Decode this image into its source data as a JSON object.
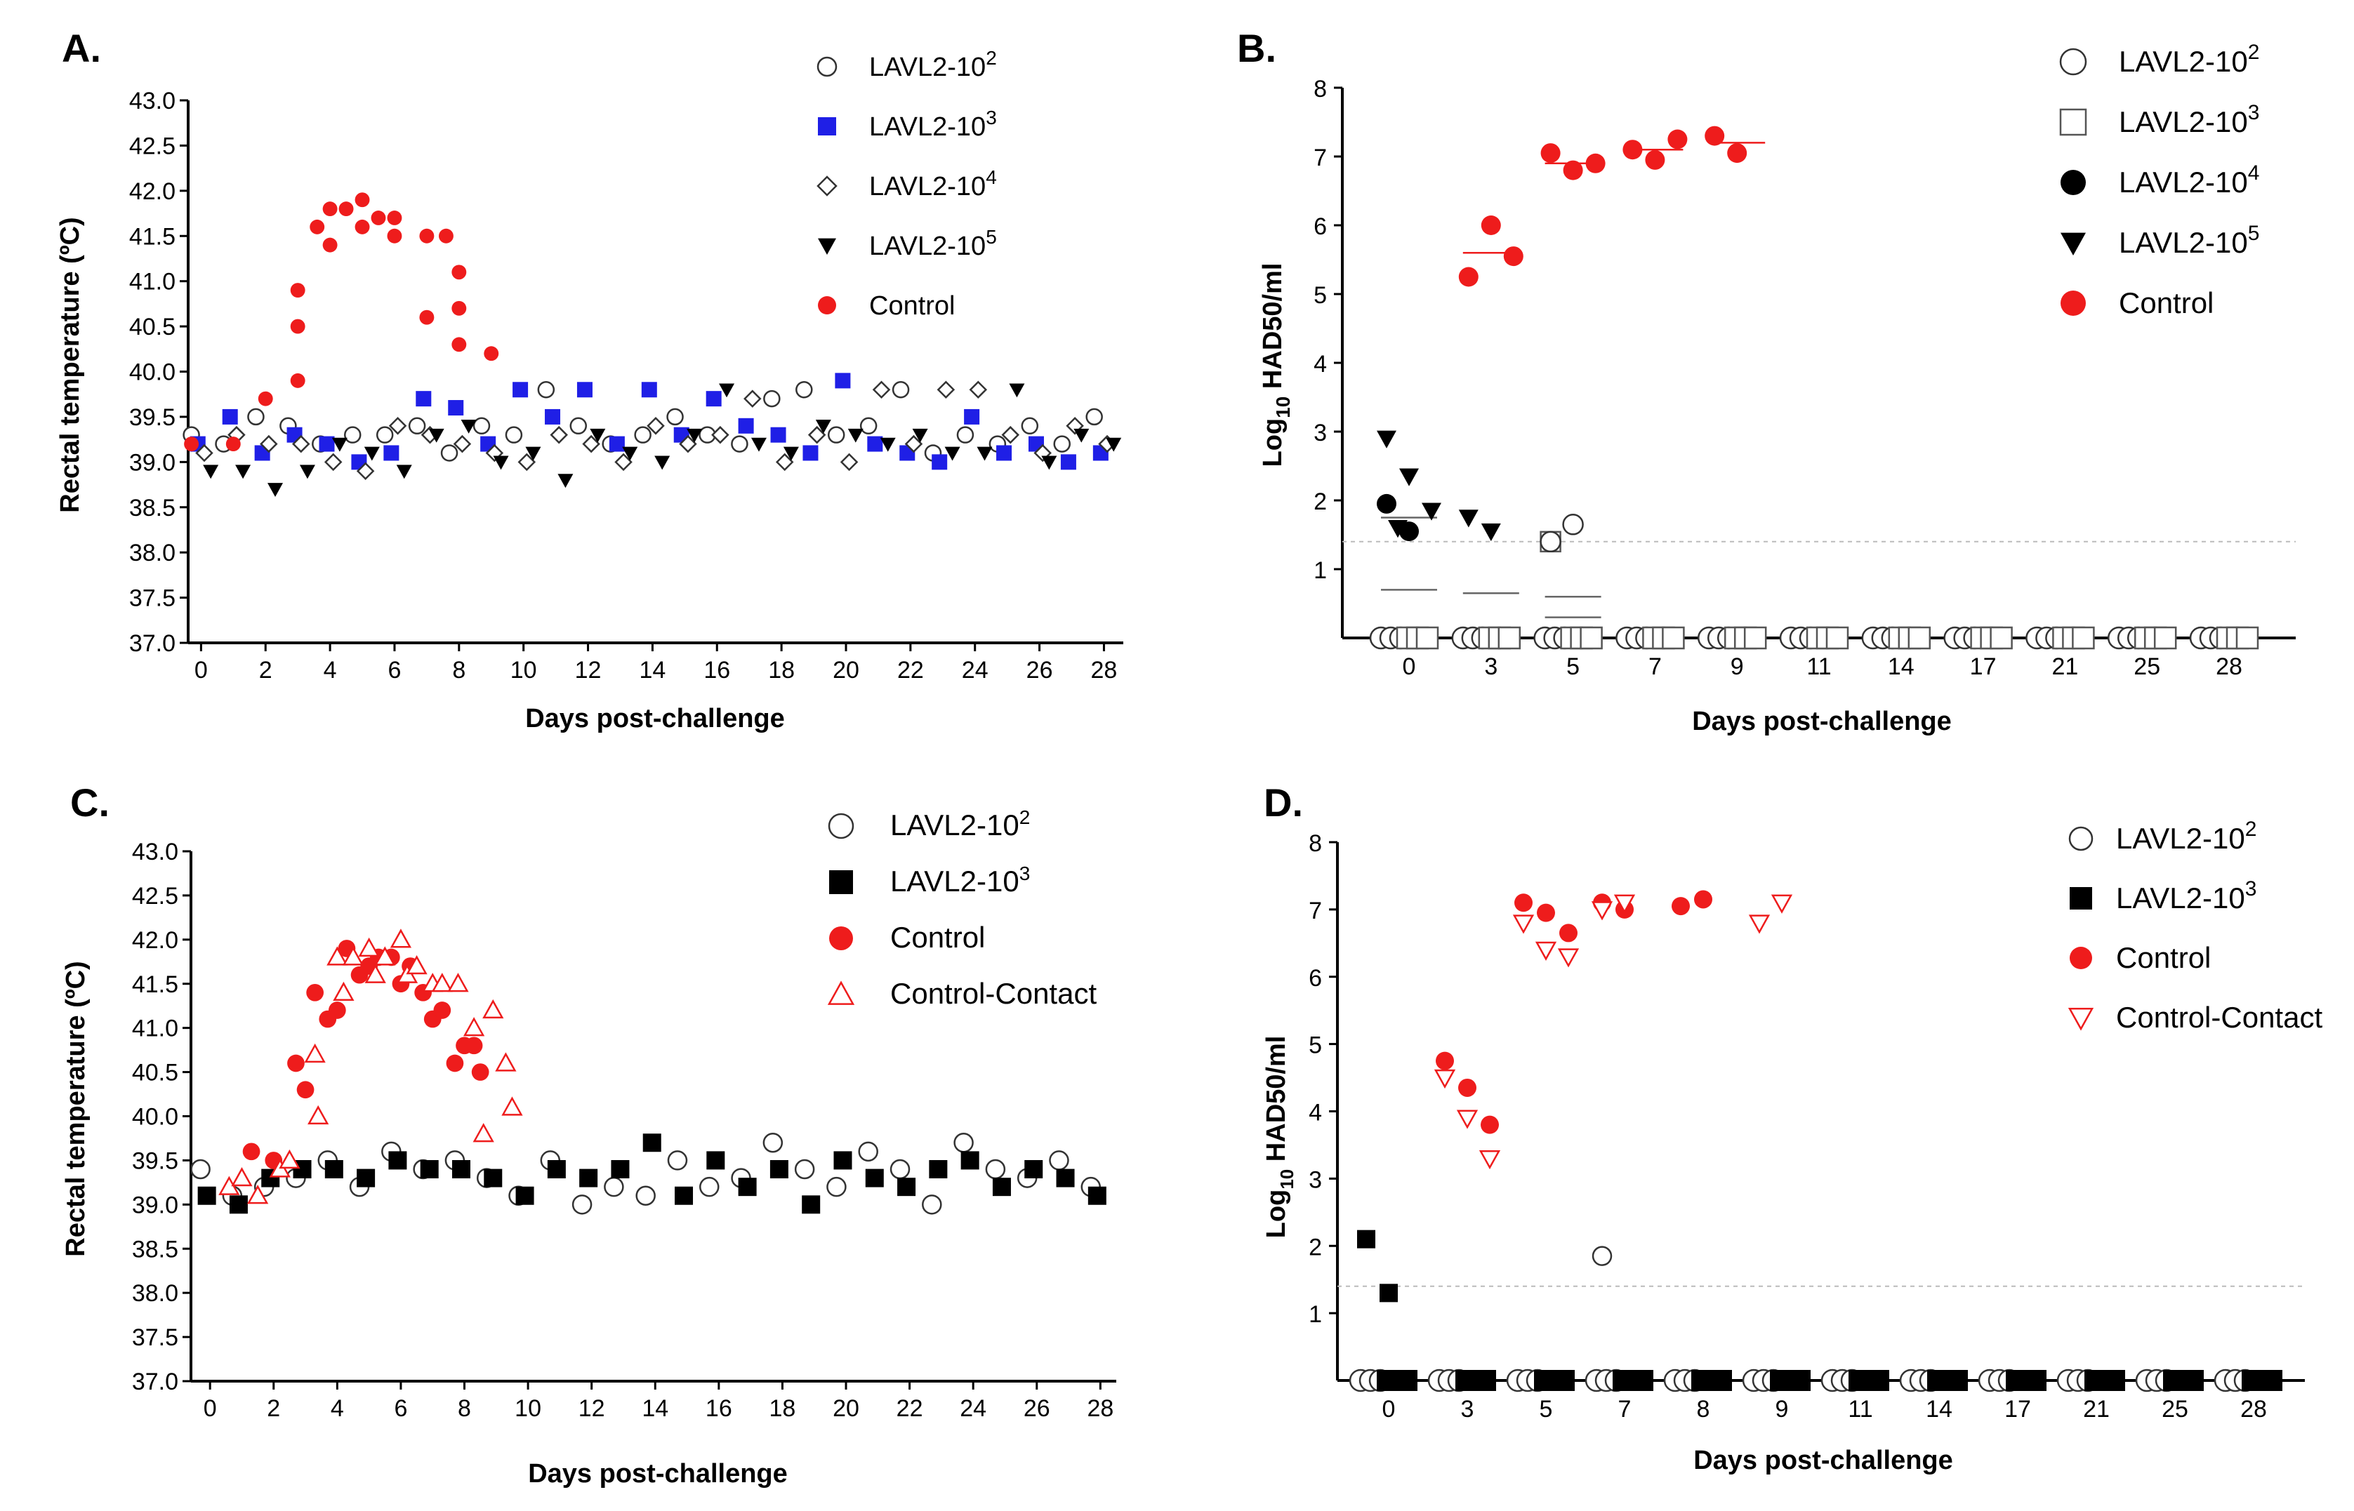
{
  "colors": {
    "control": "#ee1c1c",
    "blue": "#1f1fe6",
    "black": "#000000",
    "grey": "#999999"
  },
  "chart_data": [
    {
      "panel": "A.",
      "type": "scatter",
      "xlabel": "Days post-challenge",
      "ylabel": "Rectal temperature (ºC)",
      "xlim": [
        -0.4,
        28.6
      ],
      "ylim": [
        37.0,
        43.0
      ],
      "xticks": [
        "0",
        "2",
        "4",
        "6",
        "8",
        "10",
        "12",
        "14",
        "16",
        "18",
        "20",
        "22",
        "24",
        "26",
        "28"
      ],
      "yticks": [
        "37.0",
        "37.5",
        "38.0",
        "38.5",
        "39.0",
        "39.5",
        "40.0",
        "40.5",
        "41.0",
        "41.5",
        "42.0",
        "42.5",
        "43.0"
      ],
      "legend": [
        {
          "name": "LAVL2-10",
          "sup": "2",
          "marker": "circle-open"
        },
        {
          "name": "LAVL2-10",
          "sup": "3",
          "marker": "square-blue"
        },
        {
          "name": "LAVL2-10",
          "sup": "4",
          "marker": "diamond-open"
        },
        {
          "name": "LAVL2-10",
          "sup": "5",
          "marker": "triangle-down"
        },
        {
          "name": "Control",
          "sup": "",
          "marker": "dot-red"
        }
      ],
      "series": [
        {
          "name": "LAVL2-10²",
          "marker": "circle-open",
          "x": [
            0,
            1,
            2,
            3,
            4,
            5,
            6,
            7,
            8,
            9,
            10,
            11,
            12,
            13,
            14,
            15,
            16,
            17,
            18,
            19,
            20,
            21,
            22,
            23,
            24,
            25,
            26,
            27,
            28
          ],
          "y": [
            39.3,
            39.2,
            39.5,
            39.4,
            39.2,
            39.3,
            39.3,
            39.4,
            39.1,
            39.4,
            39.3,
            39.8,
            39.4,
            39.2,
            39.3,
            39.5,
            39.3,
            39.2,
            39.7,
            39.8,
            39.3,
            39.4,
            39.8,
            39.1,
            39.3,
            39.2,
            39.4,
            39.2,
            39.5
          ]
        },
        {
          "name": "LAVL2-10³",
          "marker": "square-blue",
          "x": [
            0,
            1,
            2,
            3,
            4,
            5,
            6,
            7,
            8,
            9,
            10,
            11,
            12,
            13,
            14,
            15,
            16,
            17,
            18,
            19,
            20,
            21,
            22,
            23,
            24,
            25,
            26,
            27,
            28
          ],
          "y": [
            39.2,
            39.5,
            39.1,
            39.3,
            39.2,
            39.0,
            39.1,
            39.7,
            39.6,
            39.2,
            39.8,
            39.5,
            39.8,
            39.2,
            39.8,
            39.3,
            39.7,
            39.4,
            39.3,
            39.1,
            39.9,
            39.2,
            39.1,
            39.0,
            39.5,
            39.1,
            39.2,
            39.0,
            39.1
          ]
        },
        {
          "name": "LAVL2-10⁴",
          "marker": "diamond-open",
          "x": [
            0,
            1,
            2,
            3,
            4,
            5,
            6,
            7,
            8,
            9,
            10,
            11,
            12,
            13,
            14,
            15,
            16,
            17,
            18,
            19,
            20,
            21,
            22,
            23,
            24,
            25,
            26,
            27,
            28
          ],
          "y": [
            39.1,
            39.3,
            39.2,
            39.2,
            39.0,
            38.9,
            39.4,
            39.3,
            39.2,
            39.1,
            39.0,
            39.3,
            39.2,
            39.0,
            39.4,
            39.2,
            39.3,
            39.7,
            39.0,
            39.3,
            39.0,
            39.8,
            39.2,
            39.8,
            39.8,
            39.3,
            39.1,
            39.4,
            39.2
          ]
        },
        {
          "name": "LAVL2-10⁵",
          "marker": "triangle-down",
          "x": [
            0,
            1,
            2,
            3,
            4,
            5,
            6,
            7,
            8,
            9,
            10,
            11,
            12,
            13,
            14,
            15,
            16,
            17,
            18,
            19,
            20,
            21,
            22,
            23,
            24,
            25,
            26,
            27,
            28
          ],
          "y": [
            38.9,
            38.9,
            38.7,
            38.9,
            39.2,
            39.1,
            38.9,
            39.3,
            39.4,
            39.0,
            39.1,
            38.8,
            39.3,
            39.1,
            39.0,
            39.3,
            39.8,
            39.2,
            39.1,
            39.4,
            39.3,
            39.2,
            39.3,
            39.1,
            39.1,
            39.8,
            39.0,
            39.3,
            39.2
          ]
        },
        {
          "name": "Control",
          "marker": "dot-red",
          "x": [
            -0.3,
            1,
            2,
            3,
            3,
            3,
            3.6,
            4,
            4,
            4.5,
            5,
            5,
            5.5,
            6,
            6,
            7,
            7,
            7.6,
            8,
            8,
            8,
            9
          ],
          "y": [
            39.2,
            39.2,
            39.7,
            40.9,
            40.5,
            39.9,
            41.6,
            41.8,
            41.4,
            41.8,
            41.9,
            41.6,
            41.7,
            41.7,
            41.5,
            41.5,
            40.6,
            41.5,
            41.1,
            40.3,
            40.7,
            40.2
          ]
        }
      ]
    },
    {
      "panel": "B.",
      "type": "scatter",
      "xlabel": "Days post-challenge",
      "ylabel": "Log10 HAD50/ml",
      "ylabel_base": "Log",
      "ylabel_sub": "10",
      "ylabel_rest": " HAD50/ml",
      "ylim": [
        0,
        8
      ],
      "categories": [
        "0",
        "3",
        "5",
        "7",
        "9",
        "11",
        "14",
        "17",
        "21",
        "25",
        "28"
      ],
      "yticks": [
        "1",
        "2",
        "3",
        "4",
        "5",
        "6",
        "7",
        "8"
      ],
      "detection_limit": 1.4,
      "legend": [
        {
          "name": "LAVL2-10",
          "sup": "2",
          "marker": "circle-open"
        },
        {
          "name": "LAVL2-10",
          "sup": "3",
          "marker": "square-open"
        },
        {
          "name": "LAVL2-10",
          "sup": "4",
          "marker": "dot-black"
        },
        {
          "name": "LAVL2-10",
          "sup": "5",
          "marker": "triangle-down"
        },
        {
          "name": "Control",
          "sup": "",
          "marker": "dot-red"
        }
      ],
      "series": [
        {
          "name": "Control",
          "marker": "dot-red",
          "x": [
            3,
            3,
            3,
            5,
            5,
            5,
            7,
            7,
            7,
            9,
            9
          ],
          "y": [
            5.25,
            6.0,
            5.55,
            7.05,
            6.8,
            6.9,
            7.1,
            6.95,
            7.25,
            7.3,
            7.05
          ]
        },
        {
          "name": "LAVL2-10⁵",
          "marker": "triangle-down",
          "x": [
            0,
            0,
            0,
            0,
            3,
            3
          ],
          "y": [
            2.9,
            2.35,
            1.85,
            1.6,
            1.75,
            1.55
          ]
        },
        {
          "name": "LAVL2-10⁴",
          "marker": "dot-black",
          "x": [
            0,
            0
          ],
          "y": [
            1.95,
            1.55
          ]
        },
        {
          "name": "LAVL2-10³",
          "marker": "square-open",
          "x": [
            5
          ],
          "y": [
            1.4
          ]
        },
        {
          "name": "LAVL2-10²",
          "marker": "circle-open",
          "x": [
            5,
            5
          ],
          "y": [
            1.4,
            1.65
          ]
        }
      ],
      "means": [
        {
          "x": 0,
          "y": 1.75
        },
        {
          "x": 3,
          "y": 5.6
        },
        {
          "x": 5,
          "y": 6.9
        },
        {
          "x": 7,
          "y": 7.1
        },
        {
          "x": 9,
          "y": 7.2
        },
        {
          "x": 0,
          "y": 0.7
        },
        {
          "x": 3,
          "y": 0.65
        },
        {
          "x": 5,
          "y": 0.6
        },
        {
          "x": 5,
          "y": 0.3
        }
      ]
    },
    {
      "panel": "C.",
      "type": "scatter",
      "xlabel": "Days post-challenge",
      "ylabel": "Rectal temperature (ºC)",
      "xlim": [
        -0.6,
        28.5
      ],
      "ylim": [
        37.0,
        43.0
      ],
      "xticks": [
        "0",
        "2",
        "4",
        "6",
        "8",
        "10",
        "12",
        "14",
        "16",
        "18",
        "20",
        "22",
        "24",
        "26",
        "28"
      ],
      "yticks": [
        "37.0",
        "37.5",
        "38.0",
        "38.5",
        "39.0",
        "39.5",
        "40.0",
        "40.5",
        "41.0",
        "41.5",
        "42.0",
        "42.5",
        "43.0"
      ],
      "legend": [
        {
          "name": "LAVL2-10",
          "sup": "2",
          "marker": "circle-open"
        },
        {
          "name": "LAVL2-10",
          "sup": "3",
          "marker": "square-black"
        },
        {
          "name": "Control",
          "sup": "",
          "marker": "dot-red"
        },
        {
          "name": "Control-Contact",
          "sup": "",
          "marker": "triangle-open-red"
        }
      ],
      "series": [
        {
          "name": "LAVL2-10²",
          "marker": "circle-open",
          "x": [
            0,
            1,
            2,
            3,
            4,
            5,
            6,
            7,
            8,
            9,
            10,
            11,
            12,
            13,
            14,
            15,
            16,
            17,
            18,
            19,
            20,
            21,
            22,
            23,
            24,
            25,
            26,
            27,
            28
          ],
          "y": [
            39.4,
            39.1,
            39.2,
            39.3,
            39.5,
            39.2,
            39.6,
            39.4,
            39.5,
            39.3,
            39.1,
            39.5,
            39.0,
            39.2,
            39.1,
            39.5,
            39.2,
            39.3,
            39.7,
            39.4,
            39.2,
            39.6,
            39.4,
            39.0,
            39.7,
            39.4,
            39.3,
            39.5,
            39.2
          ]
        },
        {
          "name": "LAVL2-10³",
          "marker": "square-black",
          "x": [
            0,
            1,
            2,
            3,
            4,
            5,
            6,
            7,
            8,
            9,
            10,
            11,
            12,
            13,
            14,
            15,
            16,
            17,
            18,
            19,
            20,
            21,
            22,
            23,
            24,
            25,
            26,
            27,
            28
          ],
          "y": [
            39.1,
            39.0,
            39.3,
            39.4,
            39.4,
            39.3,
            39.5,
            39.4,
            39.4,
            39.3,
            39.1,
            39.4,
            39.3,
            39.4,
            39.7,
            39.1,
            39.5,
            39.2,
            39.4,
            39.0,
            39.5,
            39.3,
            39.2,
            39.4,
            39.5,
            39.2,
            39.4,
            39.3,
            39.1
          ]
        },
        {
          "name": "Control",
          "marker": "dot-red",
          "x": [
            1.3,
            2,
            2.7,
            3,
            3.3,
            3.7,
            4,
            4.3,
            4.7,
            5,
            5.3,
            5.7,
            6,
            6.3,
            6.7,
            7,
            7.3,
            7.7,
            8,
            8.3,
            8.5
          ],
          "y": [
            39.6,
            39.5,
            40.6,
            40.3,
            41.4,
            41.1,
            41.2,
            41.9,
            41.6,
            41.7,
            41.8,
            41.8,
            41.5,
            41.7,
            41.4,
            41.1,
            41.2,
            40.6,
            40.8,
            40.8,
            40.5
          ]
        },
        {
          "name": "Control-Contact",
          "marker": "triangle-open-red",
          "x": [
            0.6,
            1,
            1.5,
            2.2,
            2.5,
            3.3,
            3.4,
            4,
            4.2,
            4.5,
            5,
            5.2,
            5.5,
            6,
            6.2,
            6.5,
            7,
            7.3,
            7.8,
            8.3,
            8.6,
            8.9,
            9.3,
            9.5
          ],
          "y": [
            39.2,
            39.3,
            39.1,
            39.4,
            39.5,
            40.7,
            40.0,
            41.8,
            41.4,
            41.8,
            41.9,
            41.6,
            41.8,
            42.0,
            41.6,
            41.7,
            41.5,
            41.5,
            41.5,
            41.0,
            39.8,
            41.2,
            40.6,
            40.1
          ]
        }
      ]
    },
    {
      "panel": "D.",
      "type": "scatter",
      "xlabel": "Days post-challenge",
      "ylabel": "Log10 HAD50/ml",
      "ylabel_base": "Log",
      "ylabel_sub": "10",
      "ylabel_rest": " HAD50/ml",
      "ylim": [
        0,
        8
      ],
      "categories": [
        "0",
        "3",
        "5",
        "7",
        "8",
        "9",
        "11",
        "14",
        "17",
        "21",
        "25",
        "28"
      ],
      "yticks": [
        "1",
        "2",
        "3",
        "4",
        "5",
        "6",
        "7",
        "8"
      ],
      "detection_limit": 1.4,
      "legend": [
        {
          "name": "LAVL2-10",
          "sup": "2",
          "marker": "circle-open"
        },
        {
          "name": "LAVL2-10",
          "sup": "3",
          "marker": "square-black"
        },
        {
          "name": "Control",
          "sup": "",
          "marker": "dot-red"
        },
        {
          "name": "Control-Contact",
          "sup": "",
          "marker": "triangle-down-open-red"
        }
      ],
      "series": [
        {
          "name": "LAVL2-10³",
          "marker": "square-black",
          "x": [
            0,
            0
          ],
          "y": [
            2.1,
            1.3
          ]
        },
        {
          "name": "LAVL2-10²",
          "marker": "circle-open",
          "x": [
            7
          ],
          "y": [
            1.85
          ]
        },
        {
          "name": "Control",
          "marker": "dot-red",
          "x": [
            3,
            3,
            3,
            5,
            5,
            5,
            7,
            7,
            8,
            8
          ],
          "y": [
            4.75,
            4.35,
            3.8,
            7.1,
            6.95,
            6.65,
            7.1,
            7.0,
            7.05,
            7.15
          ]
        },
        {
          "name": "Control-Contact",
          "marker": "triangle-down-open-red",
          "x": [
            3,
            3,
            3,
            5,
            5,
            5,
            7,
            7,
            9,
            9
          ],
          "y": [
            4.5,
            3.9,
            3.3,
            6.8,
            6.4,
            6.3,
            7.0,
            7.1,
            6.8,
            7.1
          ]
        }
      ]
    }
  ]
}
